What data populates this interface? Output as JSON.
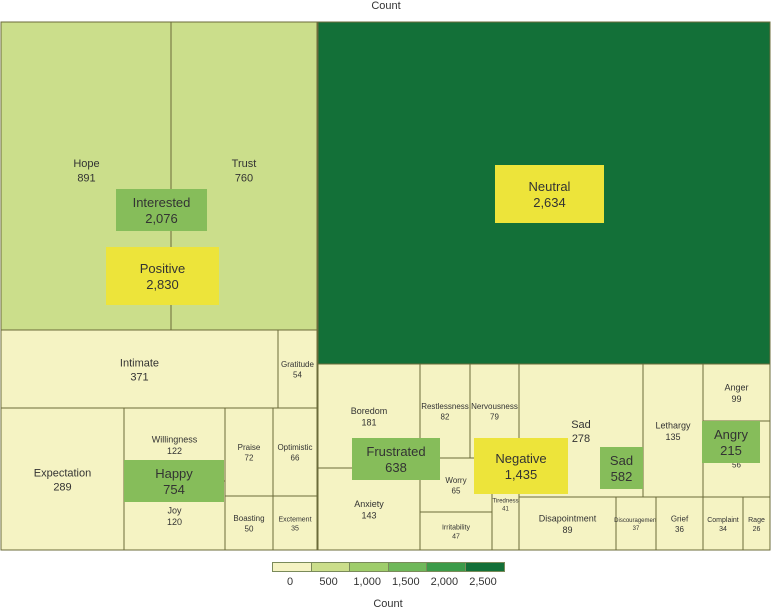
{
  "header": {
    "title": "Count"
  },
  "chart_data": {
    "type": "treemap",
    "title": "Count",
    "color_scale": {
      "title": "Count",
      "ticks": [
        "0",
        "500",
        "1,000",
        "1,500",
        "2,000",
        "2,500"
      ],
      "bands": [
        {
          "from": 0,
          "to": 500,
          "color": "#f5f3c3"
        },
        {
          "from": 500,
          "to": 1000,
          "color": "#cbde8b"
        },
        {
          "from": 1000,
          "to": 1500,
          "color": "#9fcd6b"
        },
        {
          "from": 1500,
          "to": 2000,
          "color": "#6fb85a"
        },
        {
          "from": 2000,
          "to": 2500,
          "color": "#3c9b49"
        },
        {
          "from": 2500,
          "to": 3000,
          "color": "#137038"
        }
      ]
    },
    "groups": [
      {
        "name": "Positive",
        "value": "2,830",
        "count": 2830
      },
      {
        "name": "Interested",
        "value": "2,076",
        "count": 2076
      },
      {
        "name": "Neutral",
        "value": "2,634",
        "count": 2634
      },
      {
        "name": "Happy",
        "value": "754",
        "count": 754
      },
      {
        "name": "Frustrated",
        "value": "638",
        "count": 638
      },
      {
        "name": "Negative",
        "value": "1,435",
        "count": 1435
      },
      {
        "name": "Sad",
        "value": "582",
        "count": 582
      },
      {
        "name": "Angry",
        "value": "215",
        "count": 215
      }
    ],
    "leaves": [
      {
        "name": "Hope",
        "value": "891",
        "count": 891
      },
      {
        "name": "Trust",
        "value": "760",
        "count": 760
      },
      {
        "name": "Intimate",
        "value": "371",
        "count": 371
      },
      {
        "name": "Gratitude",
        "value": "54",
        "count": 54
      },
      {
        "name": "Neutral",
        "value": "",
        "count": 2634
      },
      {
        "name": "Expectation",
        "value": "289",
        "count": 289
      },
      {
        "name": "Willingness",
        "value": "122",
        "count": 122
      },
      {
        "name": "Joy",
        "value": "120",
        "count": 120
      },
      {
        "name": "Praise",
        "value": "72",
        "count": 72
      },
      {
        "name": "Optimistic",
        "value": "66",
        "count": 66
      },
      {
        "name": "Boasting",
        "value": "50",
        "count": 50
      },
      {
        "name": "Exctement",
        "value": "35",
        "count": 35
      },
      {
        "name": "Boredom",
        "value": "181",
        "count": 181
      },
      {
        "name": "Anxiety",
        "value": "143",
        "count": 143
      },
      {
        "name": "Restlessness",
        "value": "82",
        "count": 82
      },
      {
        "name": "Nervousness",
        "value": "79",
        "count": 79
      },
      {
        "name": "Worry",
        "value": "65",
        "count": 65
      },
      {
        "name": "Tiredness",
        "value": "41",
        "count": 41
      },
      {
        "name": "Irritability",
        "value": "47",
        "count": 47
      },
      {
        "name": "Sad",
        "value": "278",
        "count": 278
      },
      {
        "name": "Disapointment",
        "value": "89",
        "count": 89
      },
      {
        "name": "Discouragement",
        "value": "37",
        "count": 37
      },
      {
        "name": "Grief",
        "value": "36",
        "count": 36
      },
      {
        "name": "Lethargy",
        "value": "135",
        "count": 135
      },
      {
        "name": "Anger",
        "value": "99",
        "count": 99
      },
      {
        "name": "Distress",
        "value": "56",
        "count": 56
      },
      {
        "name": "Complaint",
        "value": "34",
        "count": 34
      },
      {
        "name": "Rage",
        "value": "26",
        "count": 26
      }
    ]
  }
}
